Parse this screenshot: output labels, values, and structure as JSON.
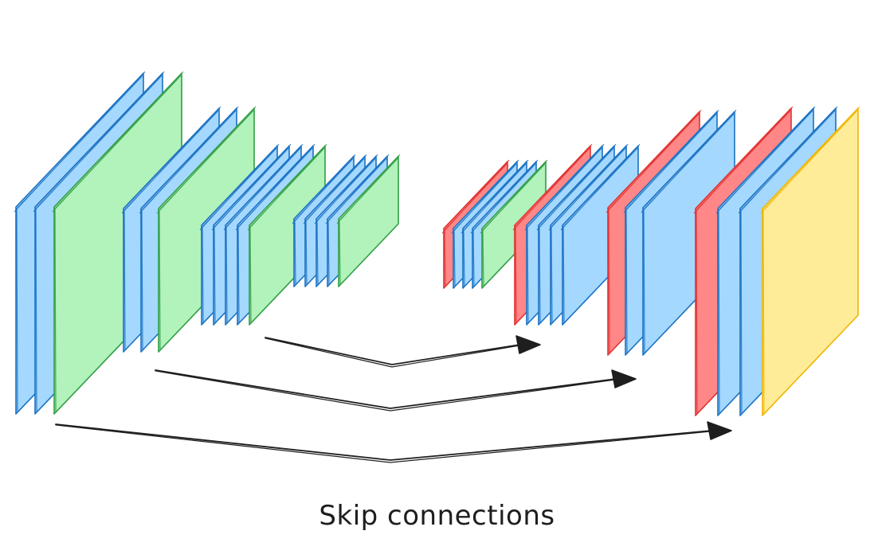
{
  "caption": "Skip connections",
  "colors": {
    "conv": {
      "fill": "#a5d8ff",
      "stroke": "#1971c2"
    },
    "pool": {
      "fill": "#b2f2bb",
      "stroke": "#2f9e44"
    },
    "upsample": {
      "fill": "#ff8787",
      "stroke": "#e03131"
    },
    "output": {
      "fill": "#ffec99",
      "stroke": "#f0b400"
    },
    "arrow": "#1e1e1e"
  },
  "encoder": [
    {
      "stage": 1,
      "layers": [
        "conv",
        "conv",
        "pool"
      ]
    },
    {
      "stage": 2,
      "layers": [
        "conv",
        "conv",
        "pool"
      ]
    },
    {
      "stage": 3,
      "layers": [
        "conv",
        "conv",
        "conv",
        "conv",
        "pool"
      ]
    },
    {
      "stage": 4,
      "layers": [
        "conv",
        "conv",
        "conv",
        "conv",
        "pool"
      ]
    }
  ],
  "decoder": [
    {
      "stage": 1,
      "layers": [
        "upsample",
        "conv",
        "conv",
        "conv",
        "pool"
      ]
    },
    {
      "stage": 2,
      "layers": [
        "upsample",
        "conv",
        "conv",
        "conv",
        "conv"
      ]
    },
    {
      "stage": 3,
      "layers": [
        "upsample",
        "conv",
        "conv"
      ]
    },
    {
      "stage": 4,
      "layers": [
        "upsample",
        "conv",
        "conv",
        "output"
      ]
    }
  ],
  "skip_connections": [
    {
      "from": "encoder stage 3",
      "to": "decoder stage 1"
    },
    {
      "from": "encoder stage 2",
      "to": "decoder stage 2"
    },
    {
      "from": "encoder stage 1",
      "to": "decoder stage 4"
    }
  ]
}
